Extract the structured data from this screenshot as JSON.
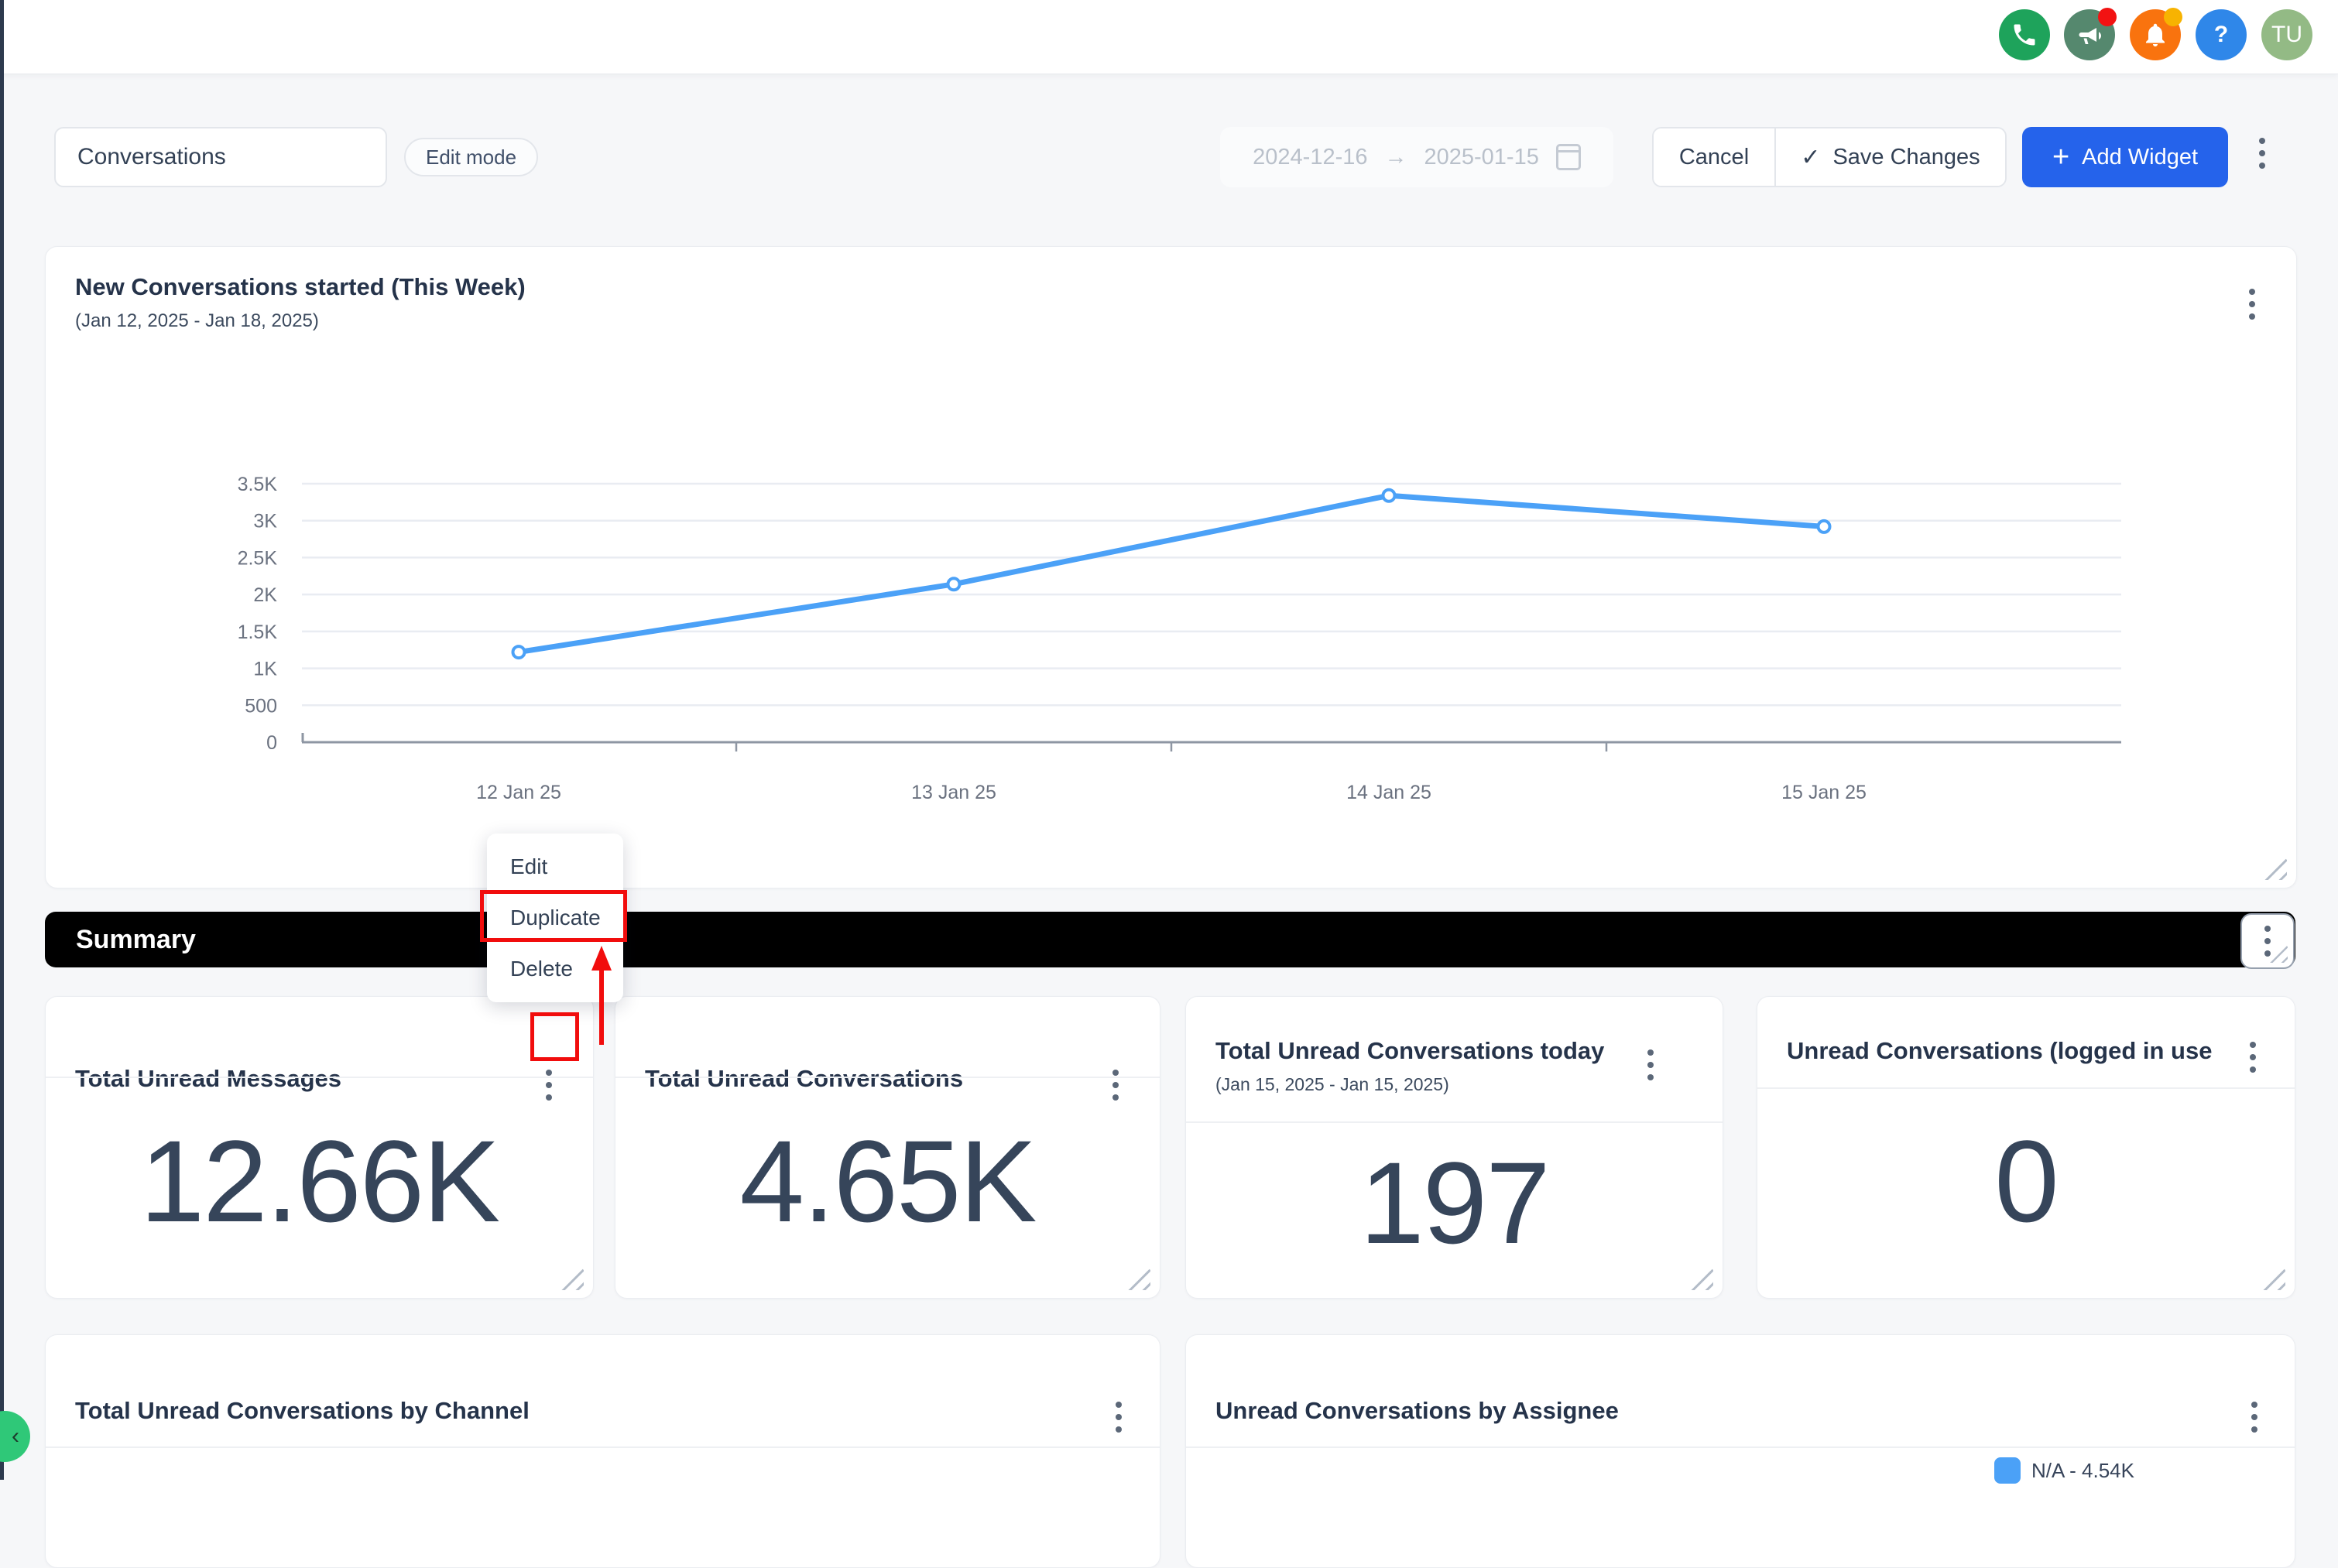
{
  "header": {
    "icons": [
      {
        "name": "phone",
        "bg": "#1ea35b"
      },
      {
        "name": "megaphone",
        "bg": "#55886e",
        "badge": "#f21212"
      },
      {
        "name": "bell",
        "bg": "#f9730e",
        "badge": "#f7b301"
      },
      {
        "name": "help",
        "bg": "#2f87e9",
        "glyph": "?"
      },
      {
        "name": "avatar",
        "bg": "#93ba85",
        "glyph": "TU"
      }
    ]
  },
  "toolbar": {
    "dashboard_name": "Conversations",
    "edit_mode_badge": "Edit mode",
    "date_start": "2024-12-16",
    "date_arrow": "→",
    "date_end": "2025-01-15",
    "cancel_label": "Cancel",
    "save_check": "✓",
    "save_label": "Save Changes",
    "add_plus": "+",
    "add_widget_label": "Add Widget"
  },
  "chart_card": {
    "title": "New Conversations started (This Week)",
    "subtitle": "(Jan 12, 2025 - Jan 18, 2025)"
  },
  "chart_data": {
    "type": "line",
    "x": [
      "12 Jan 25",
      "13 Jan 25",
      "14 Jan 25",
      "15 Jan 25"
    ],
    "series": [
      {
        "name": "New Conversations started",
        "values": [
          1220,
          2140,
          3340,
          2920
        ]
      }
    ],
    "ylim": [
      0,
      3500
    ],
    "yticks": [
      0,
      500,
      1000,
      1500,
      2000,
      2500,
      3000,
      3500
    ],
    "ytick_labels": [
      "0",
      "500",
      "1K",
      "1.5K",
      "2K",
      "2.5K",
      "3K",
      "3.5K"
    ],
    "line_color": "#4ba1f7",
    "marker": "circle-open",
    "grid": true,
    "legend": "none"
  },
  "context_menu": {
    "items": [
      "Edit",
      "Duplicate",
      "Delete"
    ],
    "highlighted": "Duplicate"
  },
  "summary_bar": {
    "title": "Summary"
  },
  "summary_cards": [
    {
      "title": "Total Unread Messages",
      "value": "12.66K"
    },
    {
      "title": "Total Unread Conversations",
      "value": "4.65K"
    },
    {
      "title": "Total Unread Conversations today",
      "subtitle": "(Jan 15, 2025 - Jan 15, 2025)",
      "value": "197"
    },
    {
      "title": "Unread Conversations (logged in use",
      "value": "0"
    }
  ],
  "bottom_cards": [
    {
      "title": "Total Unread Conversations by Channel"
    },
    {
      "title": "Unread Conversations by Assignee",
      "legend_label": "N/A - 4.54K",
      "legend_color": "#4ba1f7"
    }
  ],
  "annotation_color": "#f10d0d"
}
